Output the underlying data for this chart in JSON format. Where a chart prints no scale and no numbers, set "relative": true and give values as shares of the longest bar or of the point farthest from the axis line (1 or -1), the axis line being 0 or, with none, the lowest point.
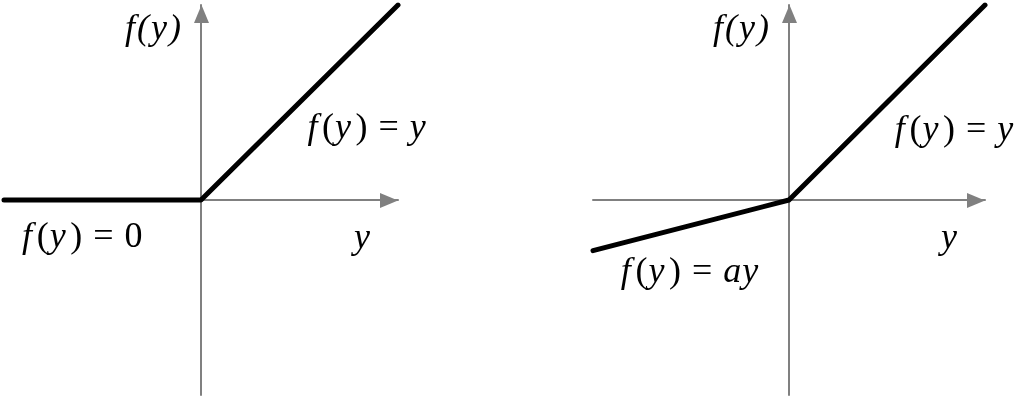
{
  "chart_data": [
    {
      "type": "line",
      "categories": [
        null,
        null,
        null
      ],
      "values": [
        0,
        0,
        1
      ],
      "color": "#000000",
      "relative": true,
      "xlabel": "y",
      "ylabel": "f(y)",
      "annotations": [
        "f(y) = y",
        "f(y) = 0"
      ],
      "marker": "none",
      "line_style": "solid"
    },
    {
      "type": "line",
      "categories": [
        null,
        null,
        null
      ],
      "values": [
        -0.26,
        0,
        1
      ],
      "color": "#000000",
      "relative": true,
      "xlabel": "y",
      "ylabel": "f(y)",
      "annotations": [
        "f(y) = y",
        "f(y) = ay"
      ],
      "marker": "none",
      "line_style": "solid"
    }
  ]
}
